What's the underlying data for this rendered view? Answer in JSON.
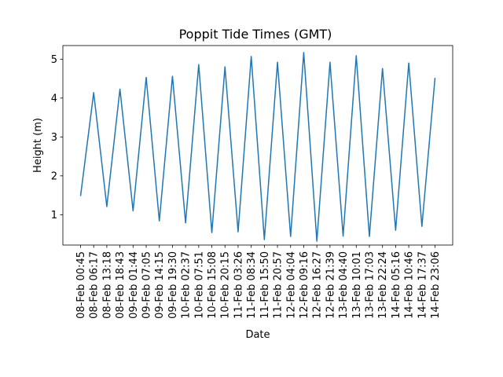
{
  "chart_data": {
    "type": "line",
    "title": "Poppit Tide Times (GMT)",
    "xlabel": "Date",
    "ylabel": "Height (m)",
    "ylim": [
      0.22,
      5.35
    ],
    "yticks": [
      1,
      2,
      3,
      4,
      5
    ],
    "grid": false,
    "x": [
      "08-Feb 00:45",
      "08-Feb 06:17",
      "08-Feb 13:18",
      "08-Feb 18:43",
      "09-Feb 01:44",
      "09-Feb 07:05",
      "09-Feb 14:15",
      "09-Feb 19:30",
      "10-Feb 02:37",
      "10-Feb 07:51",
      "10-Feb 15:08",
      "10-Feb 20:15",
      "11-Feb 03:26",
      "11-Feb 08:34",
      "11-Feb 15:50",
      "11-Feb 20:57",
      "12-Feb 04:04",
      "12-Feb 09:16",
      "12-Feb 16:27",
      "12-Feb 21:39",
      "13-Feb 04:40",
      "13-Feb 10:01",
      "13-Feb 17:03",
      "13-Feb 22:24",
      "14-Feb 05:16",
      "14-Feb 10:46",
      "14-Feb 17:37",
      "14-Feb 23:06"
    ],
    "series": [
      {
        "color": "#1f77b4",
        "values": [
          1.48,
          4.14,
          1.21,
          4.23,
          1.1,
          4.53,
          0.84,
          4.56,
          0.79,
          4.86,
          0.54,
          4.8,
          0.56,
          5.07,
          0.36,
          4.92,
          0.44,
          5.17,
          0.32,
          4.92,
          0.45,
          5.09,
          0.44,
          4.76,
          0.6,
          4.9,
          0.7,
          4.52
        ]
      }
    ]
  }
}
